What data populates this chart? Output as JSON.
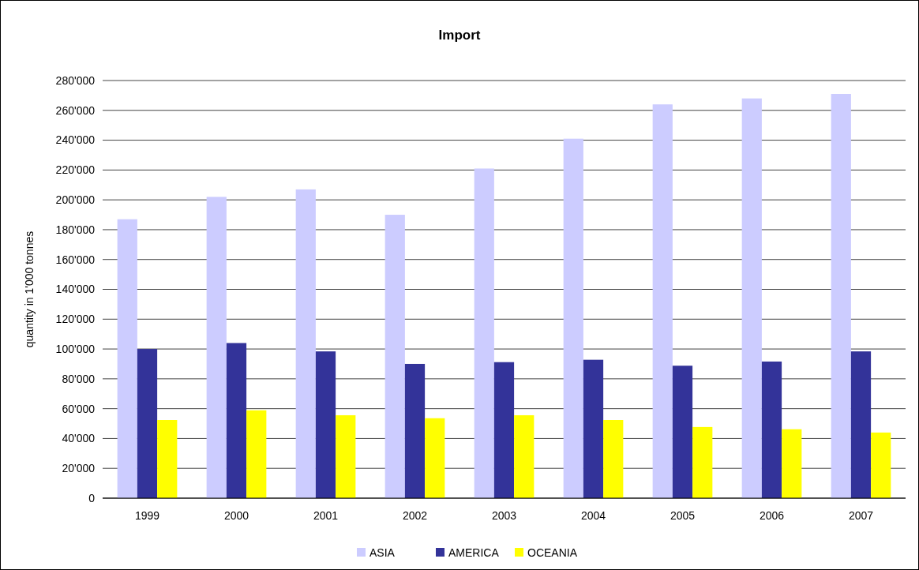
{
  "chart_data": {
    "type": "bar",
    "title": "Import",
    "ylabel": "quantity in 1'000 tonnes",
    "categories": [
      "1999",
      "2000",
      "2001",
      "2002",
      "2003",
      "2004",
      "2005",
      "2006",
      "2007"
    ],
    "series": [
      {
        "name": "ASIA",
        "color": "#ccccff",
        "values": [
          187000,
          202000,
          207000,
          190000,
          221000,
          241000,
          264000,
          268000,
          271000
        ]
      },
      {
        "name": "AMERICA",
        "color": "#333399",
        "values": [
          100000,
          104000,
          98400,
          90000,
          91200,
          92800,
          88800,
          91600,
          98400
        ]
      },
      {
        "name": "OCEANIA",
        "color": "#ffff00",
        "values": [
          52400,
          58900,
          55600,
          53600,
          55600,
          52400,
          47700,
          46200,
          44000
        ]
      }
    ],
    "ylim": [
      0,
      280000
    ],
    "yticks": [
      {
        "value": 0,
        "label": "0"
      },
      {
        "value": 20000,
        "label": "20'000"
      },
      {
        "value": 40000,
        "label": "40'000"
      },
      {
        "value": 60000,
        "label": "60'000"
      },
      {
        "value": 80000,
        "label": "80'000"
      },
      {
        "value": 100000,
        "label": "100'000"
      },
      {
        "value": 120000,
        "label": "120'000"
      },
      {
        "value": 140000,
        "label": "140'000"
      },
      {
        "value": 160000,
        "label": "160'000"
      },
      {
        "value": 180000,
        "label": "180'000"
      },
      {
        "value": 200000,
        "label": "200'000"
      },
      {
        "value": 220000,
        "label": "220'000"
      },
      {
        "value": 240000,
        "label": "240'000"
      },
      {
        "value": 260000,
        "label": "260'000"
      },
      {
        "value": 280000,
        "label": "280'000"
      }
    ],
    "grid": "y",
    "legend": "bottom"
  }
}
